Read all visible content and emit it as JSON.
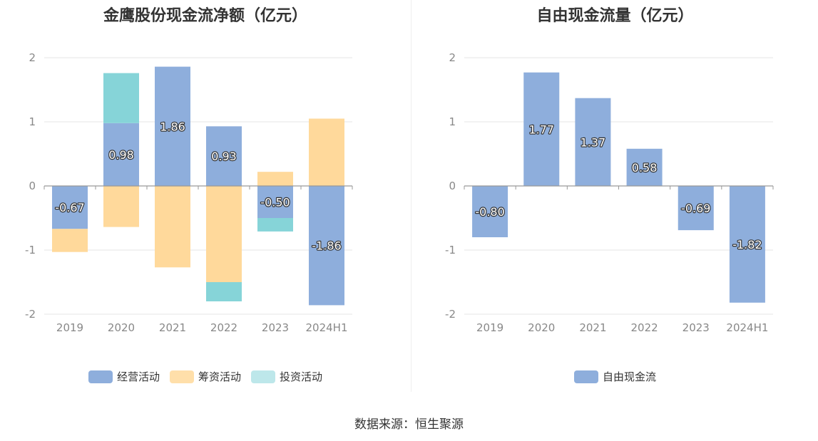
{
  "colors": {
    "operating": "#8eaedc",
    "financing": "#ffd99b",
    "investing": "#86d4d8",
    "fcf": "#8eaedc",
    "axis": "#999999",
    "grid": "#e6e6e6",
    "tick_label": "#888888",
    "label_text": "#ffffff",
    "label_outline": "#333333"
  },
  "chart_data": [
    {
      "type": "bar",
      "stacked": true,
      "title": "金鹰股份现金流净额（亿元）",
      "categories": [
        "2019",
        "2020",
        "2021",
        "2022",
        "2023",
        "2024H1"
      ],
      "ylim": [
        -2,
        2
      ],
      "yticks": [
        -2,
        -1,
        0,
        1,
        2
      ],
      "grid": true,
      "legend_position": "bottom",
      "series": [
        {
          "name": "经营活动",
          "color_key": "operating",
          "values": [
            -0.67,
            0.98,
            1.86,
            0.93,
            -0.5,
            -1.86
          ],
          "labels": [
            "-0.67",
            "0.98",
            "1.86",
            "0.93",
            "-0.50",
            "-1.86"
          ]
        },
        {
          "name": "筹资活动",
          "color_key": "financing",
          "values": [
            -0.36,
            -0.64,
            -1.27,
            -1.5,
            0.22,
            1.05
          ],
          "labels": null
        },
        {
          "name": "投资活动",
          "color_key": "investing",
          "values": [
            0.0,
            0.78,
            0.0,
            -0.3,
            -0.21,
            0.0
          ],
          "labels": null
        }
      ]
    },
    {
      "type": "bar",
      "stacked": false,
      "title": "自由现金流量（亿元）",
      "categories": [
        "2019",
        "2020",
        "2021",
        "2022",
        "2023",
        "2024H1"
      ],
      "ylim": [
        -2,
        2
      ],
      "yticks": [
        -2,
        -1,
        0,
        1,
        2
      ],
      "grid": true,
      "legend_position": "bottom",
      "series": [
        {
          "name": "自由现金流",
          "color_key": "fcf",
          "values": [
            -0.8,
            1.77,
            1.37,
            0.58,
            -0.69,
            -1.82
          ],
          "labels": [
            "-0.80",
            "1.77",
            "1.37",
            "0.58",
            "-0.69",
            "-1.82"
          ]
        }
      ]
    }
  ],
  "footer": {
    "source": "数据来源：恒生聚源"
  }
}
